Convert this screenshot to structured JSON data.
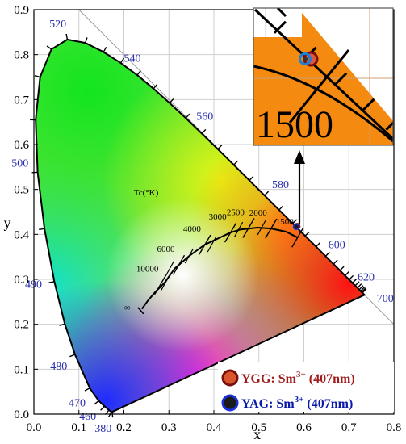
{
  "chart_data": {
    "type": "scatter",
    "title": "",
    "xlabel": "x",
    "ylabel": "y",
    "xlim": [
      0.0,
      0.8
    ],
    "ylim": [
      0.0,
      0.9
    ],
    "x_ticks": [
      "0.0",
      "0.1",
      "0.2",
      "0.3",
      "0.4",
      "0.5",
      "0.6",
      "0.7",
      "0.8"
    ],
    "y_ticks": [
      "0.0",
      "0.1",
      "0.2",
      "0.3",
      "0.4",
      "0.5",
      "0.6",
      "0.7",
      "0.8",
      "0.9"
    ],
    "grid": true,
    "spectral_locus": [
      [
        0.1741,
        0.005
      ],
      [
        0.1738,
        0.0049
      ],
      [
        0.1723,
        0.0048
      ],
      [
        0.1666,
        0.0089
      ],
      [
        0.1566,
        0.0177
      ],
      [
        0.144,
        0.0297
      ],
      [
        0.1241,
        0.0578
      ],
      [
        0.0913,
        0.1327
      ],
      [
        0.0687,
        0.2007
      ],
      [
        0.0454,
        0.295
      ],
      [
        0.0235,
        0.4127
      ],
      [
        0.0082,
        0.5384
      ],
      [
        0.0039,
        0.6548
      ],
      [
        0.0139,
        0.7502
      ],
      [
        0.0389,
        0.812
      ],
      [
        0.0743,
        0.8338
      ],
      [
        0.1142,
        0.8262
      ],
      [
        0.1547,
        0.8059
      ],
      [
        0.1929,
        0.7816
      ],
      [
        0.2296,
        0.7543
      ],
      [
        0.2658,
        0.7243
      ],
      [
        0.3016,
        0.6923
      ],
      [
        0.3373,
        0.6589
      ],
      [
        0.3731,
        0.6245
      ],
      [
        0.4087,
        0.5896
      ],
      [
        0.4441,
        0.5547
      ],
      [
        0.4788,
        0.5202
      ],
      [
        0.5125,
        0.4866
      ],
      [
        0.5448,
        0.4544
      ],
      [
        0.5752,
        0.4242
      ],
      [
        0.6029,
        0.3965
      ],
      [
        0.627,
        0.3725
      ],
      [
        0.6482,
        0.3514
      ],
      [
        0.6658,
        0.334
      ],
      [
        0.6801,
        0.3197
      ],
      [
        0.6915,
        0.3083
      ],
      [
        0.7006,
        0.2993
      ],
      [
        0.7079,
        0.292
      ],
      [
        0.714,
        0.2859
      ],
      [
        0.719,
        0.2809
      ],
      [
        0.723,
        0.277
      ],
      [
        0.726,
        0.274
      ],
      [
        0.7283,
        0.2717
      ],
      [
        0.73,
        0.27
      ],
      [
        0.7347,
        0.2653
      ]
    ],
    "wavelength_labels": [
      {
        "text": "380",
        "x": 0.1741,
        "y": 0.005
      },
      {
        "text": "460",
        "x": 0.144,
        "y": 0.0297
      },
      {
        "text": "470",
        "x": 0.1241,
        "y": 0.0578
      },
      {
        "text": "480",
        "x": 0.0913,
        "y": 0.1327
      },
      {
        "text": "490",
        "x": 0.0454,
        "y": 0.295
      },
      {
        "text": "500",
        "x": 0.0082,
        "y": 0.5384
      },
      {
        "text": "520",
        "x": 0.0743,
        "y": 0.8338
      },
      {
        "text": "540",
        "x": 0.2296,
        "y": 0.7543
      },
      {
        "text": "560",
        "x": 0.3731,
        "y": 0.6245
      },
      {
        "text": "580",
        "x": 0.5125,
        "y": 0.4866
      },
      {
        "text": "600",
        "x": 0.627,
        "y": 0.3725
      },
      {
        "text": "620",
        "x": 0.6915,
        "y": 0.3083
      },
      {
        "text": "700",
        "x": 0.7347,
        "y": 0.2653
      }
    ],
    "planckian_locus": {
      "label": "T<sub>C</sub>(°K)",
      "label_text": "Tc(°K)",
      "infinity_label": "∞",
      "points": [
        [
          0.24,
          0.234
        ],
        [
          0.253,
          0.252
        ],
        [
          0.27,
          0.272
        ],
        [
          0.29,
          0.292
        ],
        [
          0.313,
          0.324
        ],
        [
          0.345,
          0.352
        ],
        [
          0.38,
          0.377
        ],
        [
          0.437,
          0.404
        ],
        [
          0.46,
          0.411
        ],
        [
          0.497,
          0.415
        ],
        [
          0.527,
          0.413
        ],
        [
          0.56,
          0.406
        ],
        [
          0.586,
          0.393
        ]
      ],
      "isotherms": [
        {
          "text": "10000",
          "x": 0.281,
          "y": 0.288
        },
        {
          "text": "6000",
          "x": 0.322,
          "y": 0.332
        },
        {
          "text": "4000",
          "x": 0.38,
          "y": 0.377
        },
        {
          "text": "3000",
          "x": 0.437,
          "y": 0.404
        },
        {
          "text": "2500",
          "x": 0.477,
          "y": 0.414
        },
        {
          "text": "2000",
          "x": 0.527,
          "y": 0.413
        },
        {
          "text": "1500",
          "x": 0.586,
          "y": 0.393
        }
      ]
    },
    "series": [
      {
        "name": "YGG: Sm3+ (407nm)",
        "x": [
          0.585
        ],
        "y": [
          0.418
        ]
      },
      {
        "name": "YAG: Sm3+ (407nm)",
        "x": [
          0.583
        ],
        "y": [
          0.417
        ]
      }
    ],
    "inset": {
      "label": "1500"
    }
  },
  "legend": [
    {
      "name_prefix": "YGG: Sm",
      "sup": "3+",
      "suffix": " (407nm)",
      "color": "#a01c1c",
      "marker_fill": "#d9552b",
      "marker_edge": "#7a0e0e"
    },
    {
      "name_prefix": "YAG: Sm",
      "sup": "3+",
      "suffix": " (407nm)",
      "color": "#0a1aa8",
      "marker_fill": "#1a1a1a",
      "marker_edge": "#1c2fd9"
    }
  ]
}
